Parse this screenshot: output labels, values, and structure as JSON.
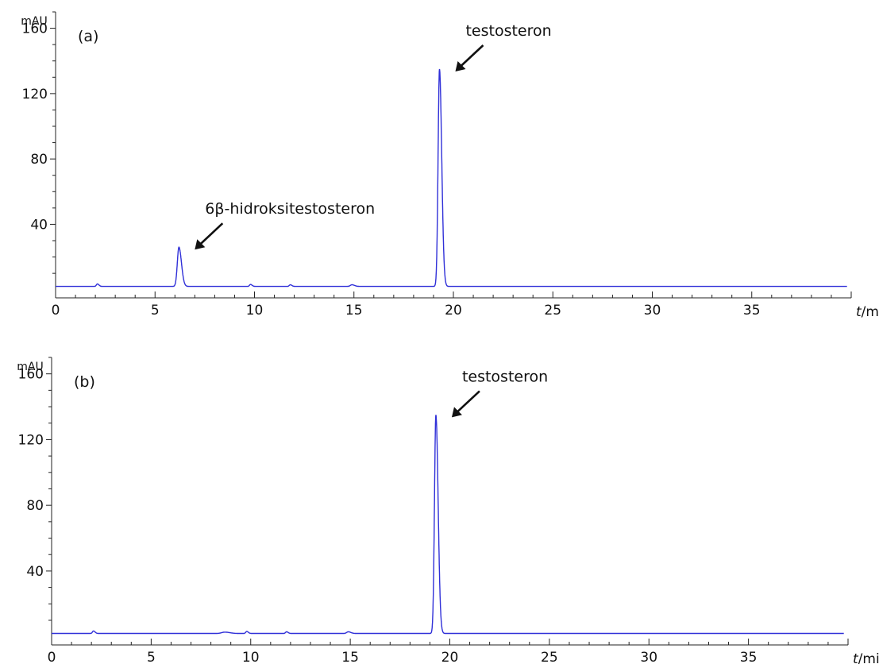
{
  "chart_data": [
    {
      "type": "line",
      "panel_label": "(a)",
      "ylabel": "mAU",
      "xlabel_italic": "t",
      "xlabel_unit": "/min",
      "xlim": [
        0,
        40
      ],
      "ylim": [
        -5,
        170
      ],
      "xticks": [
        0,
        5,
        10,
        15,
        20,
        25,
        30,
        35
      ],
      "yticks": [
        40,
        80,
        120,
        160
      ],
      "grid": false,
      "line_color": "#3030d8",
      "baseline": 2,
      "peaks": [
        {
          "t": 2.1,
          "height": 1.5,
          "width": 0.05
        },
        {
          "t": 6.2,
          "height": 24,
          "width": 0.08
        },
        {
          "t": 9.8,
          "height": 1.2,
          "width": 0.05
        },
        {
          "t": 11.8,
          "height": 1.0,
          "width": 0.05
        },
        {
          "t": 14.9,
          "height": 1.0,
          "width": 0.08
        },
        {
          "t": 19.3,
          "height": 133,
          "width": 0.07
        }
      ],
      "annotations": [
        {
          "text": "6β-hidroksitestosteron",
          "t": 6.2,
          "value": 26
        },
        {
          "text": "testosteron",
          "t": 19.3,
          "value": 135
        }
      ]
    },
    {
      "type": "line",
      "panel_label": "(b)",
      "ylabel": "mAU",
      "xlabel_italic": "t",
      "xlabel_unit": "/min",
      "xlim": [
        0,
        40
      ],
      "ylim": [
        -5,
        170
      ],
      "xticks": [
        0,
        5,
        10,
        15,
        20,
        25,
        30,
        35
      ],
      "yticks": [
        40,
        80,
        120,
        160
      ],
      "grid": false,
      "line_color": "#3030d8",
      "baseline": 2,
      "peaks": [
        {
          "t": 2.1,
          "height": 1.5,
          "width": 0.05
        },
        {
          "t": 8.7,
          "height": 0.8,
          "width": 0.15
        },
        {
          "t": 9.8,
          "height": 1.2,
          "width": 0.05
        },
        {
          "t": 11.8,
          "height": 1.0,
          "width": 0.05
        },
        {
          "t": 14.9,
          "height": 1.0,
          "width": 0.08
        },
        {
          "t": 19.3,
          "height": 133,
          "width": 0.07
        }
      ],
      "annotations": [
        {
          "text": "testosteron",
          "t": 19.3,
          "value": 135
        }
      ]
    }
  ]
}
